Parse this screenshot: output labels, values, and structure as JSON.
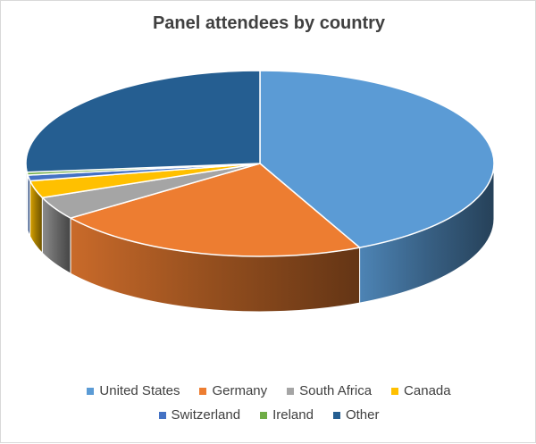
{
  "chart_data": {
    "type": "pie",
    "title": "Panel attendees by country",
    "categories": [
      "United States",
      "Germany",
      "South Africa",
      "Canada",
      "Switzerland",
      "Ireland",
      "Other"
    ],
    "values": [
      43,
      22,
      4,
      3,
      1,
      0.5,
      26.5
    ],
    "colors": [
      "#5b9bd5",
      "#ed7d31",
      "#a5a5a5",
      "#ffc000",
      "#4472c4",
      "#70ad47",
      "#255e91"
    ],
    "legend_position": "bottom",
    "style": "3d"
  }
}
